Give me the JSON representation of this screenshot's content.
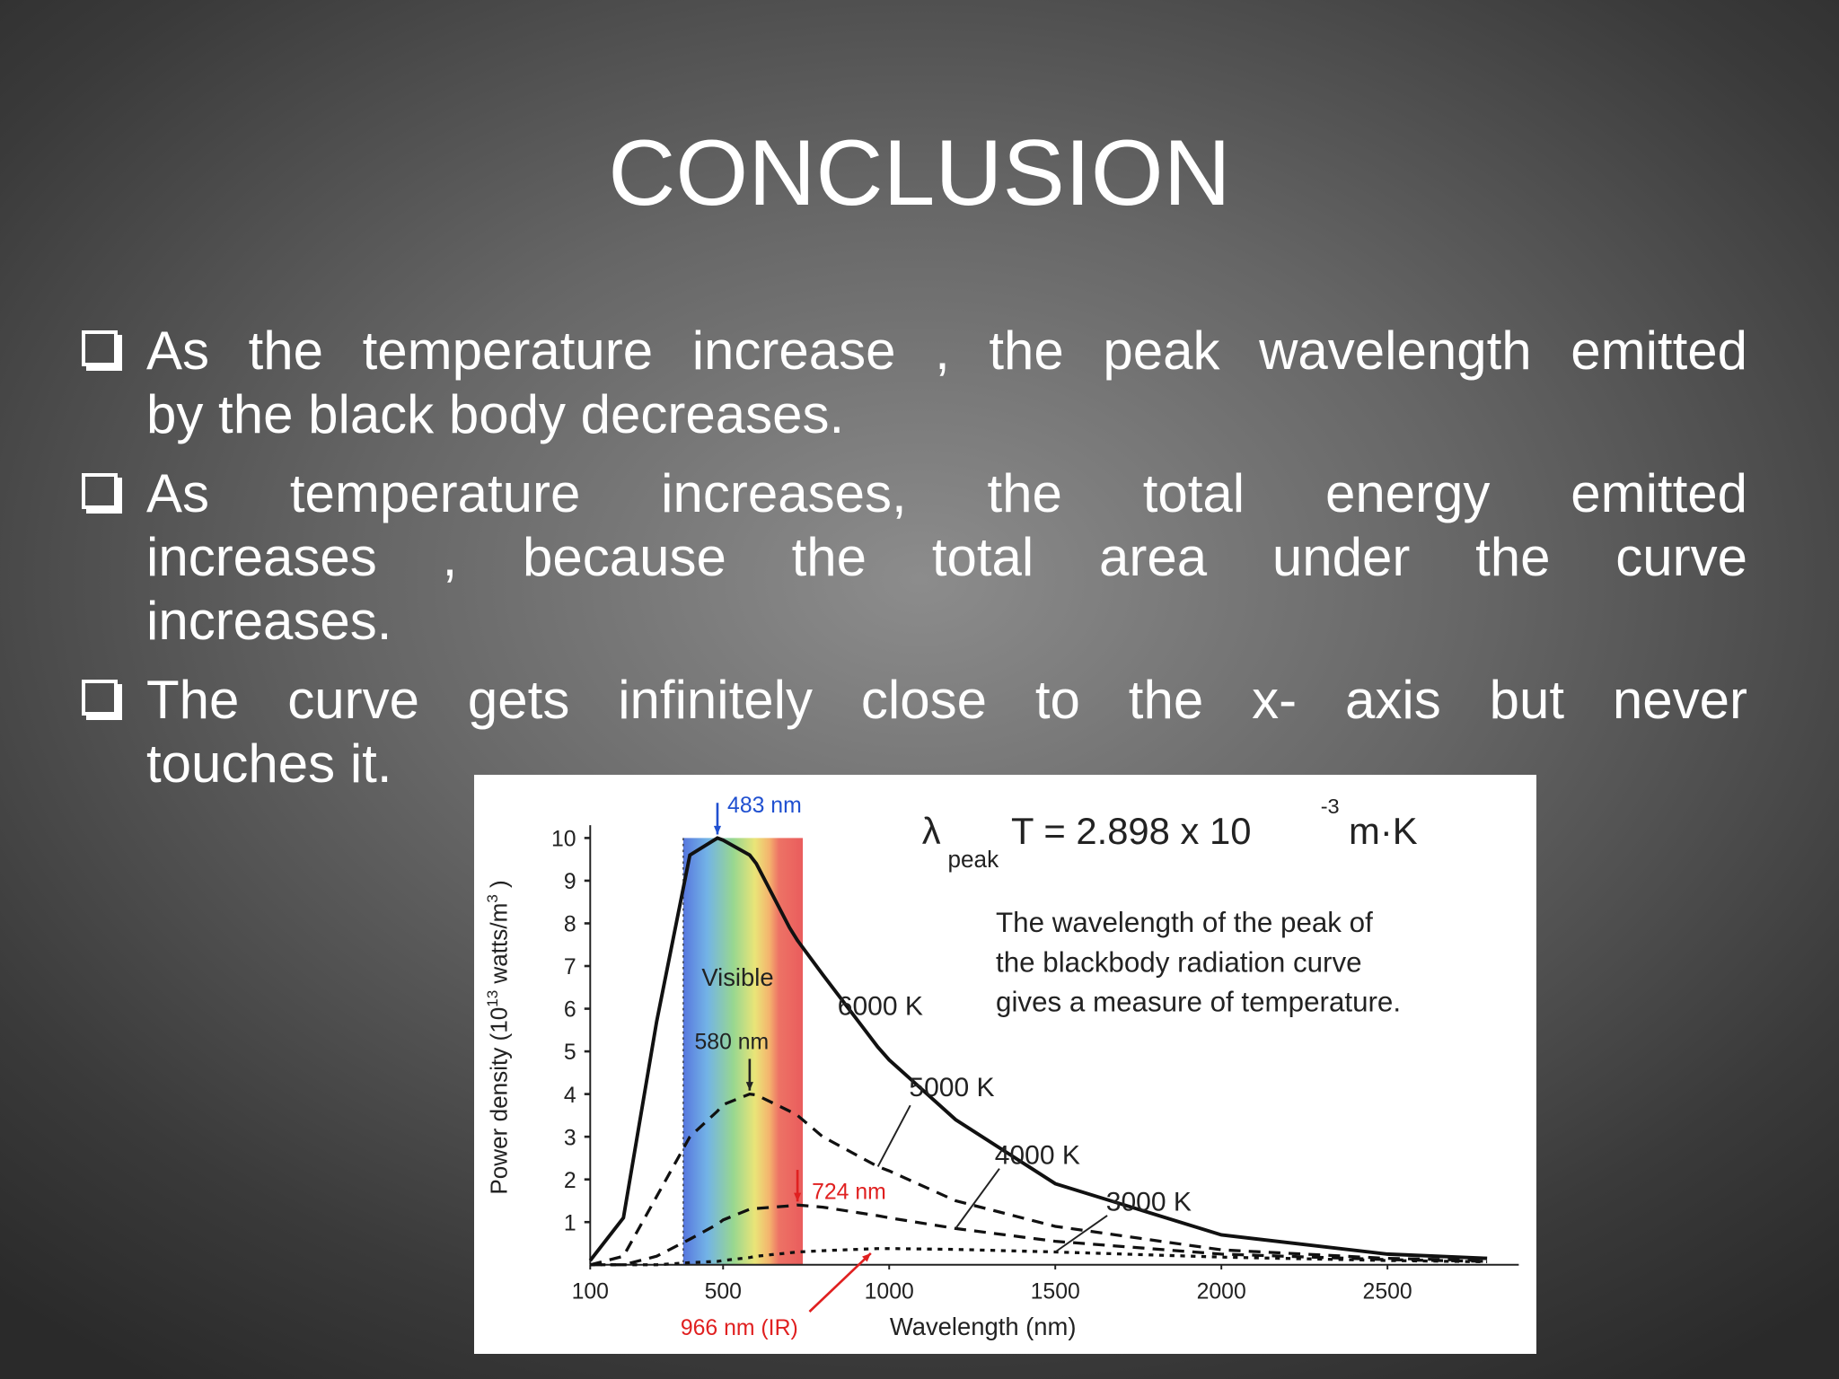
{
  "slide": {
    "title": "CONCLUSION",
    "bullets": [
      {
        "lines": [
          "As the temperature increase , the peak wavelength emitted",
          "by the black body decreases."
        ]
      },
      {
        "lines": [
          "As temperature increases, the total energy emitted",
          "increases , because the total area under the curve",
          "increases."
        ]
      },
      {
        "lines": [
          "The curve gets infinitely close to the x- axis but  never",
          "touches it."
        ]
      }
    ]
  },
  "chart_data": {
    "type": "line",
    "equation": {
      "symbol": "λ",
      "subscript": "peak",
      "text": "T = 2.898  x 10",
      "exponent": "-3",
      "unit": "m·K"
    },
    "description": [
      "The wavelength of the peak of",
      "the blackbody radiation curve",
      "gives a measure of temperature."
    ],
    "x_label": "Wavelength (nm)",
    "y_label": {
      "text": "Power density (10",
      "exponent": "13",
      "text2": " watts/m",
      "exponent2": "3",
      "close": " )"
    },
    "visible_label": "Visible",
    "visible_range_nm": [
      380,
      740
    ],
    "x": [
      100,
      200,
      300,
      400,
      483,
      500,
      580,
      600,
      700,
      724,
      800,
      966,
      1000,
      1200,
      1500,
      2000,
      2500,
      2800
    ],
    "series": [
      {
        "name": "6000 K",
        "color": "#111111",
        "style": "solid",
        "values": [
          0.1,
          1.1,
          5.7,
          9.6,
          10,
          9.95,
          9.6,
          9.4,
          7.9,
          7.6,
          6.8,
          5.1,
          4.8,
          3.4,
          1.9,
          0.7,
          0.25,
          0.15
        ]
      },
      {
        "name": "5000 K",
        "color": "#111111",
        "style": "dashed",
        "values": [
          0,
          0.2,
          1.6,
          3.0,
          3.6,
          3.75,
          4.0,
          3.98,
          3.6,
          3.5,
          3.0,
          2.3,
          2.2,
          1.5,
          0.9,
          0.35,
          0.15,
          0.1
        ]
      },
      {
        "name": "4000 K",
        "color": "#111111",
        "style": "dashed",
        "values": [
          0,
          0,
          0.2,
          0.6,
          0.95,
          1.05,
          1.3,
          1.32,
          1.38,
          1.4,
          1.35,
          1.15,
          1.1,
          0.85,
          0.55,
          0.25,
          0.12,
          0.08
        ]
      },
      {
        "name": "3000 K",
        "color": "#111111",
        "style": "dotted",
        "values": [
          0,
          0,
          0,
          0.05,
          0.08,
          0.1,
          0.17,
          0.2,
          0.28,
          0.3,
          0.33,
          0.38,
          0.38,
          0.36,
          0.3,
          0.18,
          0.1,
          0.07
        ]
      }
    ],
    "peaks": [
      {
        "label": "483 nm",
        "x": 483,
        "y": 10,
        "color": "#2050d0"
      },
      {
        "label": "580 nm",
        "x": 580,
        "y": 4.0,
        "color": "#222222"
      },
      {
        "label": "724 nm",
        "x": 724,
        "y": 1.4,
        "color": "#e02020"
      },
      {
        "label": "966 nm (IR)",
        "x": 966,
        "y": 0.38,
        "color": "#e02020"
      }
    ],
    "xlim": [
      100,
      2800
    ],
    "ylim": [
      0,
      10.3
    ],
    "xticks": [
      100,
      500,
      1000,
      1500,
      2000,
      2500
    ],
    "yticks": [
      1,
      2,
      3,
      4,
      5,
      6,
      7,
      8,
      9,
      10
    ]
  }
}
